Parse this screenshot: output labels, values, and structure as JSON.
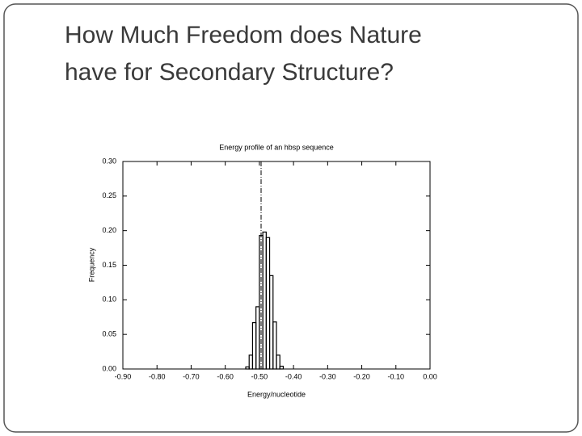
{
  "slide": {
    "title_lines": [
      "How Much Freedom does Nature",
      "have for Secondary Structure?"
    ]
  },
  "chart_data": {
    "type": "histogram",
    "title": "Energy profile of an hbsp sequence",
    "x_label": "Energy/nucleotide",
    "y_label": "Frequency",
    "bins": [
      -0.54,
      -0.53,
      -0.52,
      -0.51,
      -0.5,
      -0.49,
      -0.48,
      -0.47,
      -0.46,
      -0.45,
      -0.44,
      -0.43
    ],
    "values": [
      0.003,
      0.02,
      0.067,
      0.09,
      0.193,
      0.198,
      0.19,
      0.135,
      0.068,
      0.02,
      0.004
    ],
    "color": "#000000",
    "vline": -0.495,
    "xlim": [
      -0.9,
      0
    ],
    "xticks": [
      {
        "value": -0.9,
        "label": "-0.90"
      },
      {
        "value": -0.8,
        "label": "-0.80"
      },
      {
        "value": -0.7,
        "label": "-0.70"
      },
      {
        "value": -0.6,
        "label": "-0.60"
      },
      {
        "value": -0.5,
        "label": "-0.50"
      },
      {
        "value": -0.4,
        "label": "-0.40"
      },
      {
        "value": -0.3,
        "label": "-0.30"
      },
      {
        "value": -0.2,
        "label": "-0.20"
      },
      {
        "value": -0.1,
        "label": "-0.10"
      },
      {
        "value": 0,
        "label": "0.00"
      }
    ],
    "ylim": [
      0,
      0.3
    ],
    "yticks": [
      {
        "value": 0,
        "label": "0.00"
      },
      0.05,
      {
        "value": 0.1,
        "label": "0.10"
      },
      0.15,
      {
        "value": 0.2,
        "label": "0.20"
      },
      0.25,
      {
        "value": 0.3,
        "label": "0.30"
      }
    ]
  }
}
